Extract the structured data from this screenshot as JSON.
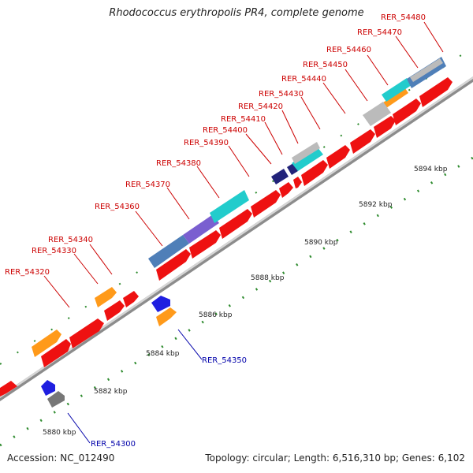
{
  "title": "Rhodococcus erythropolis PR4, complete genome",
  "footer": {
    "accession": "Accession: NC_012490",
    "stats": "Topology: circular; Length: 6,516,310 bp; Genes: 6,102"
  },
  "colors": {
    "backbone": "#9a9a9a",
    "gene_red": "#ee1111",
    "gene_orange": "#ff9a1a",
    "gene_blue": "#1f1fe0",
    "gene_gray": "#777777",
    "label_red": "#cc0000",
    "label_blue": "#0000aa",
    "ruler_green": "#2e8b2e"
  },
  "ruler": [
    {
      "label": "5880 kbp",
      "pos": 5880
    },
    {
      "label": "5882 kbp",
      "pos": 5882
    },
    {
      "label": "5884 kbp",
      "pos": 5884
    },
    {
      "label": "5886 kbp",
      "pos": 5886
    },
    {
      "label": "5888 kbp",
      "pos": 5888
    },
    {
      "label": "5890 kbp",
      "pos": 5890
    },
    {
      "label": "5892 kbp",
      "pos": 5892
    },
    {
      "label": "5894 kbp",
      "pos": 5894
    }
  ],
  "labels_above": [
    {
      "name": "RER_54320",
      "color": "label_red"
    },
    {
      "name": "RER_54330",
      "color": "label_red"
    },
    {
      "name": "RER_54340",
      "color": "label_red"
    },
    {
      "name": "RER_54360",
      "color": "label_red"
    },
    {
      "name": "RER_54370",
      "color": "label_red"
    },
    {
      "name": "RER_54380",
      "color": "label_red"
    },
    {
      "name": "RER_54390",
      "color": "label_red"
    },
    {
      "name": "RER_54400",
      "color": "label_red"
    },
    {
      "name": "RER_54410",
      "color": "label_red"
    },
    {
      "name": "RER_54420",
      "color": "label_red"
    },
    {
      "name": "RER_54430",
      "color": "label_red"
    },
    {
      "name": "RER_54440",
      "color": "label_red"
    },
    {
      "name": "RER_54450",
      "color": "label_red"
    },
    {
      "name": "RER_54460",
      "color": "label_red"
    },
    {
      "name": "RER_54470",
      "color": "label_red"
    },
    {
      "name": "RER_54480",
      "color": "label_red"
    }
  ],
  "labels_below": [
    {
      "name": "RER_54300",
      "color": "label_blue"
    },
    {
      "name": "RER_54350",
      "color": "label_blue"
    }
  ]
}
